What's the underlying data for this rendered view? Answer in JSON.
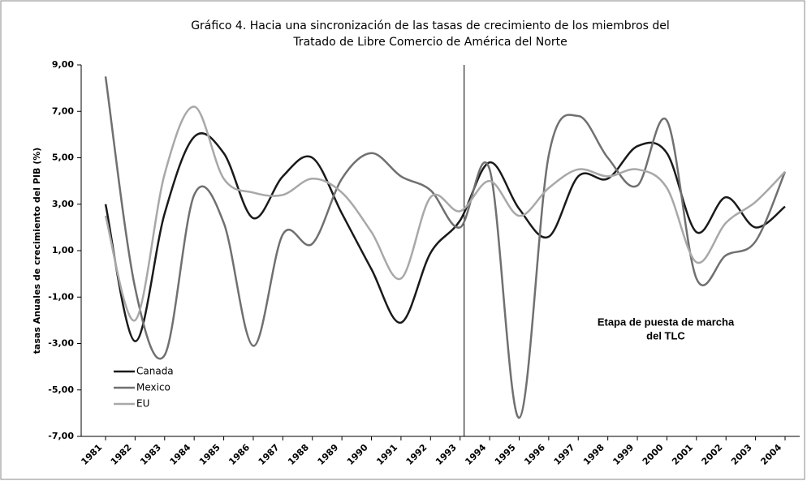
{
  "chart_data": {
    "type": "line",
    "title": [
      "Gráfico 4. Hacia una sincronización de las tasas de crecimiento de los miembros del",
      "Tratado de Libre Comercio de América del Norte"
    ],
    "y_label": "tasas Anuales de crecimiento del PIB (%)",
    "annotation": [
      "Etapa de puesta de marcha",
      "del TLC"
    ],
    "vline": "1993",
    "categories": [
      "1981",
      "1982",
      "1983",
      "1984",
      "1985",
      "1986",
      "1987",
      "1988",
      "1989",
      "1990",
      "1991",
      "1992",
      "1993",
      "1994",
      "1995",
      "1996",
      "1997",
      "1998",
      "1999",
      "2000",
      "2001",
      "2002",
      "2003",
      "2004"
    ],
    "series": [
      {
        "name": "Canada",
        "color": "#1a1a1a",
        "values": [
          3.0,
          -2.9,
          2.6,
          5.9,
          5.2,
          2.4,
          4.2,
          5.0,
          2.6,
          0.2,
          -2.1,
          0.9,
          2.3,
          4.8,
          2.8,
          1.6,
          4.2,
          4.1,
          5.5,
          5.2,
          1.8,
          3.3,
          2.0,
          2.9
        ]
      },
      {
        "name": "Mexico",
        "color": "#707070",
        "values": [
          8.5,
          -0.6,
          -3.5,
          3.4,
          2.2,
          -3.1,
          1.7,
          1.3,
          4.1,
          5.2,
          4.2,
          3.6,
          2.0,
          4.5,
          -6.2,
          5.1,
          6.8,
          5.0,
          3.8,
          6.6,
          -0.2,
          0.8,
          1.4,
          4.4
        ]
      },
      {
        "name": "EU",
        "color": "#a8a8a8",
        "values": [
          2.5,
          -2.0,
          4.3,
          7.2,
          4.1,
          3.5,
          3.4,
          4.1,
          3.5,
          1.8,
          -0.2,
          3.3,
          2.7,
          4.0,
          2.5,
          3.7,
          4.5,
          4.2,
          4.5,
          3.7,
          0.5,
          2.2,
          3.1,
          4.4
        ]
      }
    ],
    "ylim": [
      -7,
      9
    ],
    "yticks": [
      {
        "value": -7,
        "label": "-7,00"
      },
      {
        "value": -5,
        "label": "-5,00"
      },
      {
        "value": -3,
        "label": "-3,00"
      },
      {
        "value": -1,
        "label": "-1,00"
      },
      {
        "value": 1,
        "label": "1,00"
      },
      {
        "value": 3,
        "label": "3,00"
      },
      {
        "value": 5,
        "label": "5,00"
      },
      {
        "value": 7,
        "label": "7,00"
      },
      {
        "value": 9,
        "label": "9,00"
      }
    ],
    "legend": "lower left"
  }
}
